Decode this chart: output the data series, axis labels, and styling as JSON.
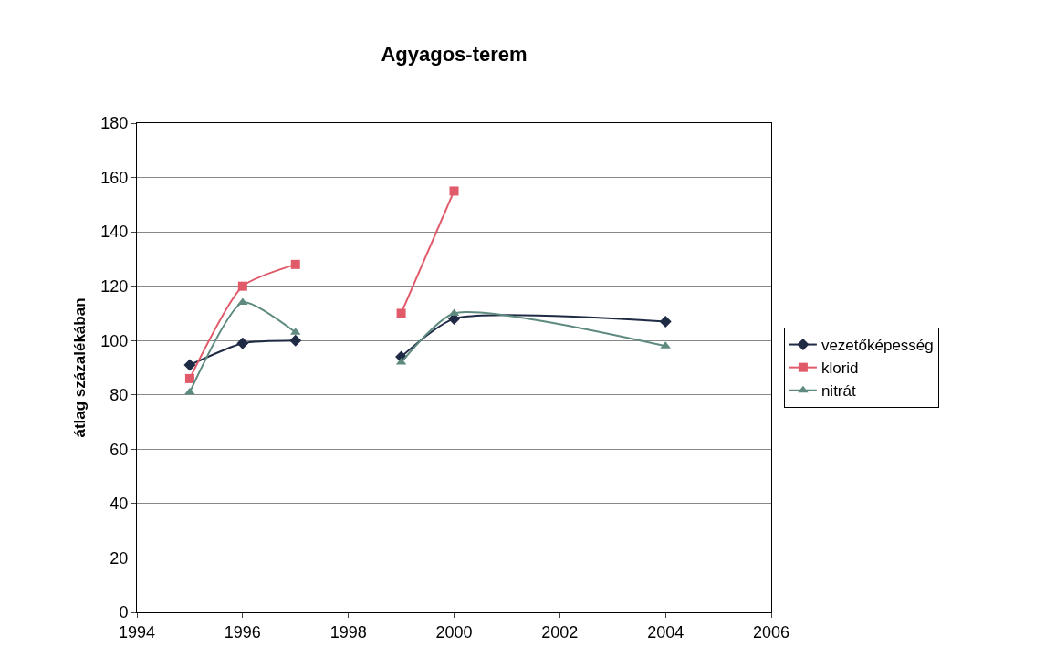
{
  "chart_data": {
    "type": "line",
    "title": "Agyagos-terem",
    "ylabel": "átlag százalékában",
    "x": [
      1995,
      1996,
      1997,
      1998,
      1999,
      2000,
      2004
    ],
    "series": [
      {
        "name": "vezetőképesség",
        "color": "#1f2a44",
        "marker": "diamond",
        "values": [
          91,
          99,
          100,
          null,
          94,
          108,
          107
        ]
      },
      {
        "name": "klorid",
        "color": "#e05a6a",
        "marker": "square",
        "values": [
          86,
          120,
          128,
          null,
          110,
          155,
          null
        ]
      },
      {
        "name": "nitrát",
        "color": "#5f8a80",
        "marker": "triangle",
        "values": [
          81,
          114,
          103,
          null,
          92,
          110,
          98
        ]
      }
    ],
    "xlim": [
      1994,
      2006
    ],
    "xticks": [
      1994,
      1996,
      1998,
      2000,
      2002,
      2004,
      2006
    ],
    "ylim": [
      0,
      180
    ],
    "yticks": [
      0,
      20,
      40,
      60,
      80,
      100,
      120,
      140,
      160,
      180
    ],
    "grid": "y",
    "legend": "right"
  }
}
